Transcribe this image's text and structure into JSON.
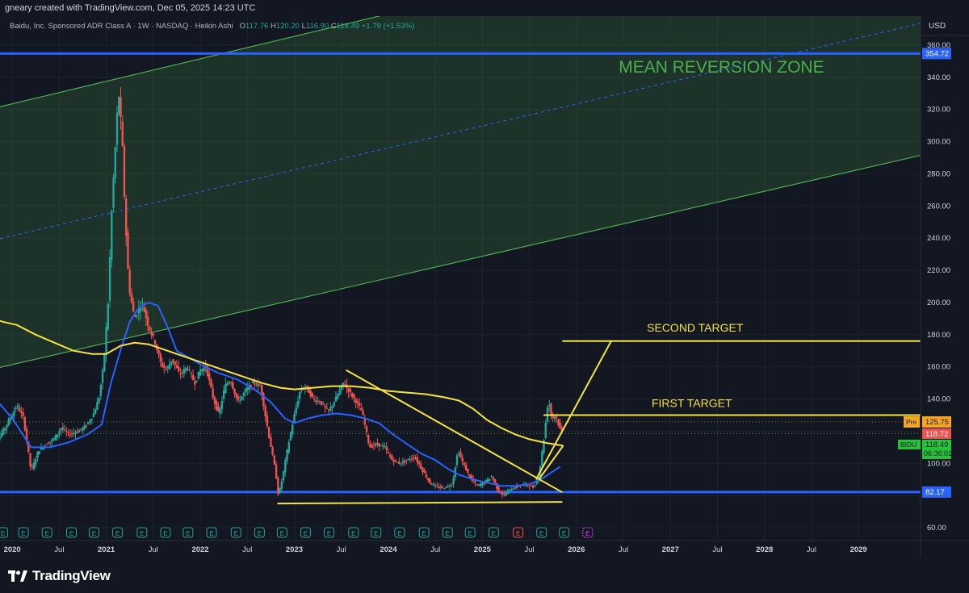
{
  "header": {
    "credit": "gneary created with TradingView.com, Dec 05, 2025 14:23 UTC"
  },
  "legend": {
    "symbol": "Baidu, Inc. Sponsored ADR Class A · 1W · NASDAQ · Heikin Ashi",
    "o_label": "O",
    "o_value": "117.76",
    "h_label": "H",
    "h_value": "120.20",
    "l_label": "L",
    "l_value": "116.90",
    "c_label": "C",
    "c_value": "118.49",
    "change": "+1.79 (+1.53%)"
  },
  "currency": "USD",
  "footer": {
    "brand": "TradingView"
  },
  "colors": {
    "background": "#131722",
    "up": "#26a69a",
    "down": "#ef5350",
    "ma_fast": "#2962ff",
    "ma_slow": "#f5e342",
    "channel": "#4caf50",
    "horizontal_lines": "#2962ff",
    "annotations": "#f5e342"
  },
  "chart_data": {
    "type": "candlestick",
    "price_style": "Heikin Ashi",
    "timeframe": "1W",
    "ylim": [
      52,
      378
    ],
    "x_range": [
      "2019-11",
      "2029-07"
    ],
    "y_ticks": [
      60,
      80,
      100,
      120,
      140,
      160,
      180,
      200,
      220,
      240,
      260,
      280,
      300,
      320,
      340,
      360
    ],
    "x_ticks": [
      {
        "t": 2020.0,
        "label": "2020",
        "bold": true
      },
      {
        "t": 2020.5,
        "label": "Jul",
        "bold": false
      },
      {
        "t": 2021.0,
        "label": "2021",
        "bold": true
      },
      {
        "t": 2021.5,
        "label": "Jul",
        "bold": false
      },
      {
        "t": 2022.0,
        "label": "2022",
        "bold": true
      },
      {
        "t": 2022.5,
        "label": "Jul",
        "bold": false
      },
      {
        "t": 2023.0,
        "label": "2023",
        "bold": true
      },
      {
        "t": 2023.5,
        "label": "Jul",
        "bold": false
      },
      {
        "t": 2024.0,
        "label": "2024",
        "bold": true
      },
      {
        "t": 2024.5,
        "label": "Jul",
        "bold": false
      },
      {
        "t": 2025.0,
        "label": "2025",
        "bold": true
      },
      {
        "t": 2025.5,
        "label": "Jul",
        "bold": false
      },
      {
        "t": 2026.0,
        "label": "2026",
        "bold": true
      },
      {
        "t": 2026.5,
        "label": "Jul",
        "bold": false
      },
      {
        "t": 2027.0,
        "label": "2027",
        "bold": true
      },
      {
        "t": 2027.5,
        "label": "Jul",
        "bold": false
      },
      {
        "t": 2028.0,
        "label": "2028",
        "bold": true
      },
      {
        "t": 2028.5,
        "label": "Jul",
        "bold": false
      },
      {
        "t": 2029.0,
        "label": "2029",
        "bold": true
      }
    ],
    "price_path": [
      [
        2019.75,
        112
      ],
      [
        2019.85,
        115
      ],
      [
        2019.95,
        125
      ],
      [
        2020.05,
        136
      ],
      [
        2020.12,
        128
      ],
      [
        2020.2,
        95
      ],
      [
        2020.28,
        108
      ],
      [
        2020.36,
        112
      ],
      [
        2020.44,
        115
      ],
      [
        2020.52,
        122
      ],
      [
        2020.6,
        118
      ],
      [
        2020.7,
        120
      ],
      [
        2020.78,
        123
      ],
      [
        2020.86,
        130
      ],
      [
        2020.92,
        140
      ],
      [
        2020.97,
        160
      ],
      [
        2021.02,
        200
      ],
      [
        2021.06,
        260
      ],
      [
        2021.1,
        300
      ],
      [
        2021.13,
        332
      ],
      [
        2021.17,
        300
      ],
      [
        2021.2,
        255
      ],
      [
        2021.24,
        210
      ],
      [
        2021.3,
        190
      ],
      [
        2021.38,
        200
      ],
      [
        2021.45,
        185
      ],
      [
        2021.52,
        175
      ],
      [
        2021.58,
        162
      ],
      [
        2021.64,
        158
      ],
      [
        2021.7,
        165
      ],
      [
        2021.78,
        155
      ],
      [
        2021.86,
        160
      ],
      [
        2021.94,
        150
      ],
      [
        2022.0,
        158
      ],
      [
        2022.06,
        160
      ],
      [
        2022.14,
        140
      ],
      [
        2022.2,
        130
      ],
      [
        2022.26,
        148
      ],
      [
        2022.32,
        152
      ],
      [
        2022.4,
        138
      ],
      [
        2022.48,
        145
      ],
      [
        2022.56,
        150
      ],
      [
        2022.64,
        148
      ],
      [
        2022.72,
        120
      ],
      [
        2022.8,
        95
      ],
      [
        2022.83,
        80
      ],
      [
        2022.87,
        90
      ],
      [
        2022.93,
        110
      ],
      [
        2023.0,
        130
      ],
      [
        2023.06,
        145
      ],
      [
        2023.12,
        148
      ],
      [
        2023.2,
        140
      ],
      [
        2023.28,
        138
      ],
      [
        2023.36,
        132
      ],
      [
        2023.44,
        140
      ],
      [
        2023.52,
        150
      ],
      [
        2023.58,
        145
      ],
      [
        2023.64,
        140
      ],
      [
        2023.72,
        132
      ],
      [
        2023.8,
        110
      ],
      [
        2023.88,
        112
      ],
      [
        2023.96,
        110
      ],
      [
        2024.04,
        102
      ],
      [
        2024.12,
        100
      ],
      [
        2024.2,
        102
      ],
      [
        2024.28,
        104
      ],
      [
        2024.36,
        96
      ],
      [
        2024.44,
        88
      ],
      [
        2024.52,
        85
      ],
      [
        2024.6,
        85
      ],
      [
        2024.68,
        87
      ],
      [
        2024.74,
        108
      ],
      [
        2024.78,
        102
      ],
      [
        2024.86,
        92
      ],
      [
        2024.94,
        86
      ],
      [
        2025.02,
        88
      ],
      [
        2025.1,
        92
      ],
      [
        2025.16,
        84
      ],
      [
        2025.22,
        80
      ],
      [
        2025.3,
        84
      ],
      [
        2025.38,
        86
      ],
      [
        2025.46,
        87
      ],
      [
        2025.54,
        85
      ],
      [
        2025.6,
        92
      ],
      [
        2025.66,
        118
      ],
      [
        2025.7,
        140
      ],
      [
        2025.74,
        128
      ],
      [
        2025.78,
        130
      ],
      [
        2025.82,
        122
      ],
      [
        2025.86,
        118
      ]
    ],
    "series": [
      {
        "name": "fast MA",
        "color": "#2962ff",
        "points": [
          [
            2019.75,
            145
          ],
          [
            2020.0,
            128
          ],
          [
            2020.2,
            110
          ],
          [
            2020.4,
            110
          ],
          [
            2020.6,
            113
          ],
          [
            2020.8,
            118
          ],
          [
            2020.95,
            124
          ],
          [
            2021.05,
            150
          ],
          [
            2021.15,
            170
          ],
          [
            2021.25,
            188
          ],
          [
            2021.35,
            197
          ],
          [
            2021.45,
            200
          ],
          [
            2021.55,
            198
          ],
          [
            2021.65,
            185
          ],
          [
            2021.75,
            170
          ],
          [
            2021.9,
            165
          ],
          [
            2022.05,
            160
          ],
          [
            2022.2,
            156
          ],
          [
            2022.4,
            152
          ],
          [
            2022.6,
            145
          ],
          [
            2022.75,
            138
          ],
          [
            2022.9,
            128
          ],
          [
            2023.0,
            125
          ],
          [
            2023.15,
            128
          ],
          [
            2023.3,
            130
          ],
          [
            2023.45,
            131
          ],
          [
            2023.6,
            130
          ],
          [
            2023.75,
            128
          ],
          [
            2023.9,
            125
          ],
          [
            2024.05,
            118
          ],
          [
            2024.2,
            112
          ],
          [
            2024.35,
            106
          ],
          [
            2024.5,
            102
          ],
          [
            2024.65,
            96
          ],
          [
            2024.75,
            93
          ],
          [
            2024.9,
            90
          ],
          [
            2025.05,
            88
          ],
          [
            2025.2,
            86
          ],
          [
            2025.35,
            86
          ],
          [
            2025.5,
            87
          ],
          [
            2025.65,
            91
          ],
          [
            2025.75,
            95
          ],
          [
            2025.83,
            98
          ]
        ]
      },
      {
        "name": "slow MA",
        "color": "#f5e342",
        "points": [
          [
            2019.75,
            191
          ],
          [
            2019.9,
            188
          ],
          [
            2020.05,
            186
          ],
          [
            2020.25,
            180
          ],
          [
            2020.45,
            175
          ],
          [
            2020.65,
            170
          ],
          [
            2020.85,
            168
          ],
          [
            2021.0,
            168
          ],
          [
            2021.15,
            173
          ],
          [
            2021.3,
            175
          ],
          [
            2021.45,
            174
          ],
          [
            2021.6,
            171
          ],
          [
            2021.75,
            168
          ],
          [
            2021.9,
            165
          ],
          [
            2022.05,
            162
          ],
          [
            2022.25,
            158
          ],
          [
            2022.45,
            154
          ],
          [
            2022.65,
            150
          ],
          [
            2022.85,
            147
          ],
          [
            2023.0,
            146
          ],
          [
            2023.2,
            147
          ],
          [
            2023.4,
            148
          ],
          [
            2023.6,
            148
          ],
          [
            2023.8,
            147
          ],
          [
            2024.0,
            145
          ],
          [
            2024.2,
            144
          ],
          [
            2024.4,
            143
          ],
          [
            2024.6,
            141
          ],
          [
            2024.75,
            139
          ],
          [
            2024.9,
            134
          ],
          [
            2025.05,
            127
          ],
          [
            2025.2,
            122
          ],
          [
            2025.35,
            118
          ],
          [
            2025.5,
            115
          ],
          [
            2025.65,
            113
          ],
          [
            2025.75,
            112
          ],
          [
            2025.86,
            111
          ]
        ]
      }
    ],
    "horizontal_lines": [
      {
        "value": 354.72,
        "label": "354.72",
        "color": "#2962ff"
      },
      {
        "value": 82.17,
        "label": "82.17",
        "color": "#2962ff"
      }
    ],
    "price_labels": [
      {
        "value": 125.75,
        "label": "125.75",
        "prefix": "Pre",
        "color": "#f5a623"
      },
      {
        "value": 118.72,
        "label": "118.72",
        "prefix": "",
        "color": "#ef5350"
      },
      {
        "value": 118.49,
        "label": "118.49",
        "prefix": "BIDU",
        "color": "#26c23c",
        "sub": "06:36:01"
      }
    ],
    "channel": {
      "lower": [
        [
          2019.75,
          158
        ],
        [
          2029.7,
          292
        ]
      ],
      "upper": [
        [
          2019.75,
          320
        ],
        [
          2023.9,
          378
        ]
      ],
      "mid_dashed": [
        [
          2019.75,
          238
        ],
        [
          2029.7,
          374
        ]
      ]
    },
    "annotations": [
      {
        "text": "MEAN REVERSION ZONE",
        "color": "#4caf50"
      },
      {
        "text": "SECOND TARGET",
        "color": "#f5e342"
      },
      {
        "text": "FIRST TARGET",
        "color": "#f5e342"
      }
    ],
    "trend_lines": [
      {
        "name": "descending line",
        "from": [
          2023.55,
          158
        ],
        "to": [
          2025.85,
          82
        ]
      },
      {
        "name": "bottom support",
        "from": [
          2022.82,
          75
        ],
        "to": [
          2025.85,
          76
        ]
      },
      {
        "name": "first target line",
        "from": [
          2025.65,
          130
        ],
        "to": [
          2029.7,
          130
        ]
      },
      {
        "name": "second target line",
        "from": [
          2025.85,
          176
        ],
        "to": [
          2029.7,
          176
        ]
      },
      {
        "name": "projection up",
        "from": [
          2025.57,
          90
        ],
        "to": [
          2026.37,
          176
        ]
      },
      {
        "name": "projection lower",
        "from": [
          2025.6,
          90
        ],
        "to": [
          2025.86,
          111
        ]
      }
    ],
    "earnings_markers": [
      2019.9,
      2020.12,
      2020.37,
      2020.63,
      2020.87,
      2021.12,
      2021.38,
      2021.63,
      2021.87,
      2022.12,
      2022.38,
      2022.63,
      2022.87,
      2023.12,
      2023.37,
      2023.63,
      2023.87,
      2024.12,
      2024.38,
      2024.63,
      2024.87,
      2025.12,
      2025.38,
      2025.63,
      2025.87
    ]
  }
}
